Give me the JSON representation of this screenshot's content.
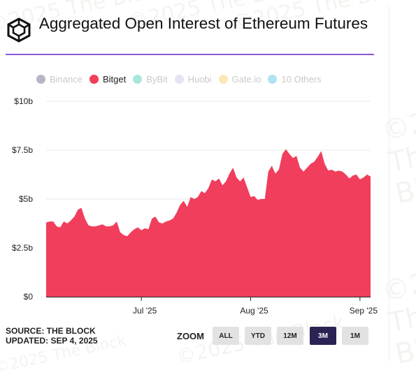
{
  "title": "Aggregated Open Interest of Ethereum Futures",
  "logo_icon": "the-block-cube-logo",
  "watermark_text": "©2025 The Block",
  "legend": [
    {
      "name": "Binance",
      "color": "#b8b5c6",
      "visible": false
    },
    {
      "name": "Bitget",
      "color": "#f03e5c",
      "visible": true
    },
    {
      "name": "ByBit",
      "color": "#a9e6da",
      "visible": false
    },
    {
      "name": "Huobi",
      "color": "#e6e3f5",
      "visible": false
    },
    {
      "name": "Gate.io",
      "color": "#fce7b8",
      "visible": false
    },
    {
      "name": "10 Others",
      "color": "#aee3f4",
      "visible": false
    }
  ],
  "source_label": "SOURCE: THE BLOCK",
  "updated_label": "UPDATED: SEP 4, 2025",
  "zoom": {
    "label": "ZOOM",
    "options": [
      "ALL",
      "YTD",
      "12M",
      "3M",
      "1M"
    ],
    "selected": "3M"
  },
  "chart_data": {
    "type": "area",
    "x_tick_labels": [
      "Jul '25",
      "Aug '25",
      "Sep '25"
    ],
    "x_tick_dates": [
      "2025-07-01",
      "2025-08-01",
      "2025-09-01"
    ],
    "y_tick_labels": [
      "$0",
      "$2.5b",
      "$5b",
      "$7.5b",
      "$10b"
    ],
    "y_tick_values": [
      0,
      2.5,
      5,
      7.5,
      10
    ],
    "ylim": [
      0,
      10
    ],
    "y_unit": "billion USD",
    "grid": true,
    "legend_position": "top",
    "series": [
      {
        "name": "Bitget",
        "color": "#f03e5c",
        "points": [
          [
            "2025-06-04",
            3.8
          ],
          [
            "2025-06-05",
            3.85
          ],
          [
            "2025-06-06",
            3.85
          ],
          [
            "2025-06-07",
            3.6
          ],
          [
            "2025-06-08",
            3.55
          ],
          [
            "2025-06-09",
            3.85
          ],
          [
            "2025-06-10",
            3.75
          ],
          [
            "2025-06-11",
            3.9
          ],
          [
            "2025-06-12",
            4.1
          ],
          [
            "2025-06-13",
            4.45
          ],
          [
            "2025-06-14",
            4.55
          ],
          [
            "2025-06-15",
            4.0
          ],
          [
            "2025-06-16",
            3.65
          ],
          [
            "2025-06-17",
            3.6
          ],
          [
            "2025-06-18",
            3.6
          ],
          [
            "2025-06-19",
            3.65
          ],
          [
            "2025-06-20",
            3.7
          ],
          [
            "2025-06-21",
            3.6
          ],
          [
            "2025-06-22",
            3.6
          ],
          [
            "2025-06-23",
            3.65
          ],
          [
            "2025-06-24",
            3.85
          ],
          [
            "2025-06-25",
            3.3
          ],
          [
            "2025-06-26",
            3.15
          ],
          [
            "2025-06-27",
            3.1
          ],
          [
            "2025-06-28",
            3.3
          ],
          [
            "2025-06-29",
            3.45
          ],
          [
            "2025-06-30",
            3.55
          ],
          [
            "2025-07-01",
            3.4
          ],
          [
            "2025-07-02",
            3.5
          ],
          [
            "2025-07-03",
            3.45
          ],
          [
            "2025-07-04",
            4.0
          ],
          [
            "2025-07-05",
            4.1
          ],
          [
            "2025-07-06",
            3.8
          ],
          [
            "2025-07-07",
            3.75
          ],
          [
            "2025-07-08",
            3.85
          ],
          [
            "2025-07-09",
            3.9
          ],
          [
            "2025-07-10",
            4.0
          ],
          [
            "2025-07-11",
            4.3
          ],
          [
            "2025-07-12",
            4.7
          ],
          [
            "2025-07-13",
            4.9
          ],
          [
            "2025-07-14",
            4.6
          ],
          [
            "2025-07-15",
            5.1
          ],
          [
            "2025-07-16",
            5.0
          ],
          [
            "2025-07-17",
            5.1
          ],
          [
            "2025-07-18",
            5.4
          ],
          [
            "2025-07-19",
            5.3
          ],
          [
            "2025-07-20",
            5.55
          ],
          [
            "2025-07-21",
            6.0
          ],
          [
            "2025-07-22",
            5.9
          ],
          [
            "2025-07-23",
            6.05
          ],
          [
            "2025-07-24",
            5.7
          ],
          [
            "2025-07-25",
            5.9
          ],
          [
            "2025-07-26",
            6.3
          ],
          [
            "2025-07-27",
            6.6
          ],
          [
            "2025-07-28",
            6.1
          ],
          [
            "2025-07-29",
            5.9
          ],
          [
            "2025-07-30",
            6.1
          ],
          [
            "2025-07-31",
            5.6
          ],
          [
            "2025-08-01",
            5.1
          ],
          [
            "2025-08-02",
            5.15
          ],
          [
            "2025-08-03",
            4.95
          ],
          [
            "2025-08-04",
            5.0
          ],
          [
            "2025-08-05",
            5.0
          ],
          [
            "2025-08-06",
            6.4
          ],
          [
            "2025-08-07",
            6.7
          ],
          [
            "2025-08-08",
            6.3
          ],
          [
            "2025-08-09",
            6.5
          ],
          [
            "2025-08-10",
            7.3
          ],
          [
            "2025-08-11",
            7.55
          ],
          [
            "2025-08-12",
            7.3
          ],
          [
            "2025-08-13",
            7.1
          ],
          [
            "2025-08-14",
            7.2
          ],
          [
            "2025-08-15",
            6.6
          ],
          [
            "2025-08-16",
            6.4
          ],
          [
            "2025-08-17",
            6.6
          ],
          [
            "2025-08-18",
            6.8
          ],
          [
            "2025-08-19",
            6.9
          ],
          [
            "2025-08-20",
            7.15
          ],
          [
            "2025-08-21",
            7.45
          ],
          [
            "2025-08-22",
            6.8
          ],
          [
            "2025-08-23",
            6.45
          ],
          [
            "2025-08-24",
            6.5
          ],
          [
            "2025-08-25",
            6.4
          ],
          [
            "2025-08-26",
            6.45
          ],
          [
            "2025-08-27",
            6.4
          ],
          [
            "2025-08-28",
            6.25
          ],
          [
            "2025-08-29",
            6.05
          ],
          [
            "2025-08-30",
            6.2
          ],
          [
            "2025-08-31",
            6.25
          ],
          [
            "2025-09-01",
            6.0
          ],
          [
            "2025-09-02",
            6.1
          ],
          [
            "2025-09-03",
            6.25
          ],
          [
            "2025-09-04",
            6.15
          ]
        ]
      }
    ]
  }
}
